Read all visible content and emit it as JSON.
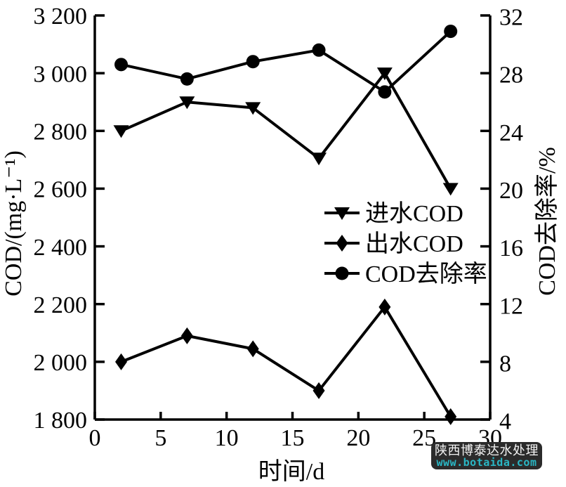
{
  "chart_data": {
    "type": "line",
    "title": "",
    "x": [
      2,
      7,
      12,
      17,
      22,
      27
    ],
    "xlabel": "时间/d",
    "xlim": [
      0,
      30
    ],
    "x_ticks": [
      0,
      5,
      10,
      15,
      20,
      25,
      30
    ],
    "left_axis": {
      "label": "COD/(mg·L⁻¹)",
      "lim": [
        1800,
        3200
      ],
      "tick_values": [
        1800,
        2000,
        2200,
        2400,
        2600,
        2800,
        3000,
        3200
      ],
      "tick_labels": [
        "1 800",
        "2 000",
        "2 200",
        "2 400",
        "2 600",
        "2 800",
        "3 000",
        "3 200"
      ]
    },
    "right_axis": {
      "label": "COD去除率/%",
      "lim": [
        4,
        32
      ],
      "tick_values": [
        4,
        8,
        12,
        16,
        20,
        24,
        28,
        32
      ],
      "tick_labels": [
        "4",
        "8",
        "12",
        "16",
        "20",
        "24",
        "28",
        "32"
      ]
    },
    "series": [
      {
        "name": "进水COD",
        "id": "influent-cod",
        "axis": "left",
        "marker": "triangle-down",
        "values": [
          2800,
          2900,
          2880,
          2705,
          3000,
          2600
        ]
      },
      {
        "name": "出水COD",
        "id": "effluent-cod",
        "axis": "left",
        "marker": "diamond",
        "values": [
          2000,
          2090,
          2045,
          1900,
          2190,
          1810
        ]
      },
      {
        "name": "COD去除率",
        "id": "cod-removal-rate",
        "axis": "right",
        "marker": "circle",
        "values": [
          28.6,
          27.6,
          28.8,
          29.6,
          26.7,
          30.9
        ]
      }
    ],
    "legend": {
      "position": "center-right-inside",
      "entries": [
        "进水COD",
        "出水COD",
        "COD去除率"
      ]
    },
    "grid": false,
    "line_color": "#000000"
  },
  "watermark": {
    "line1": "陕西博泰达水处理",
    "line2": "www.botaida.com",
    "bg_color": "#2b2b2b",
    "line1_color": "#f4f4f4",
    "line2_color": "#2ab7c5"
  }
}
